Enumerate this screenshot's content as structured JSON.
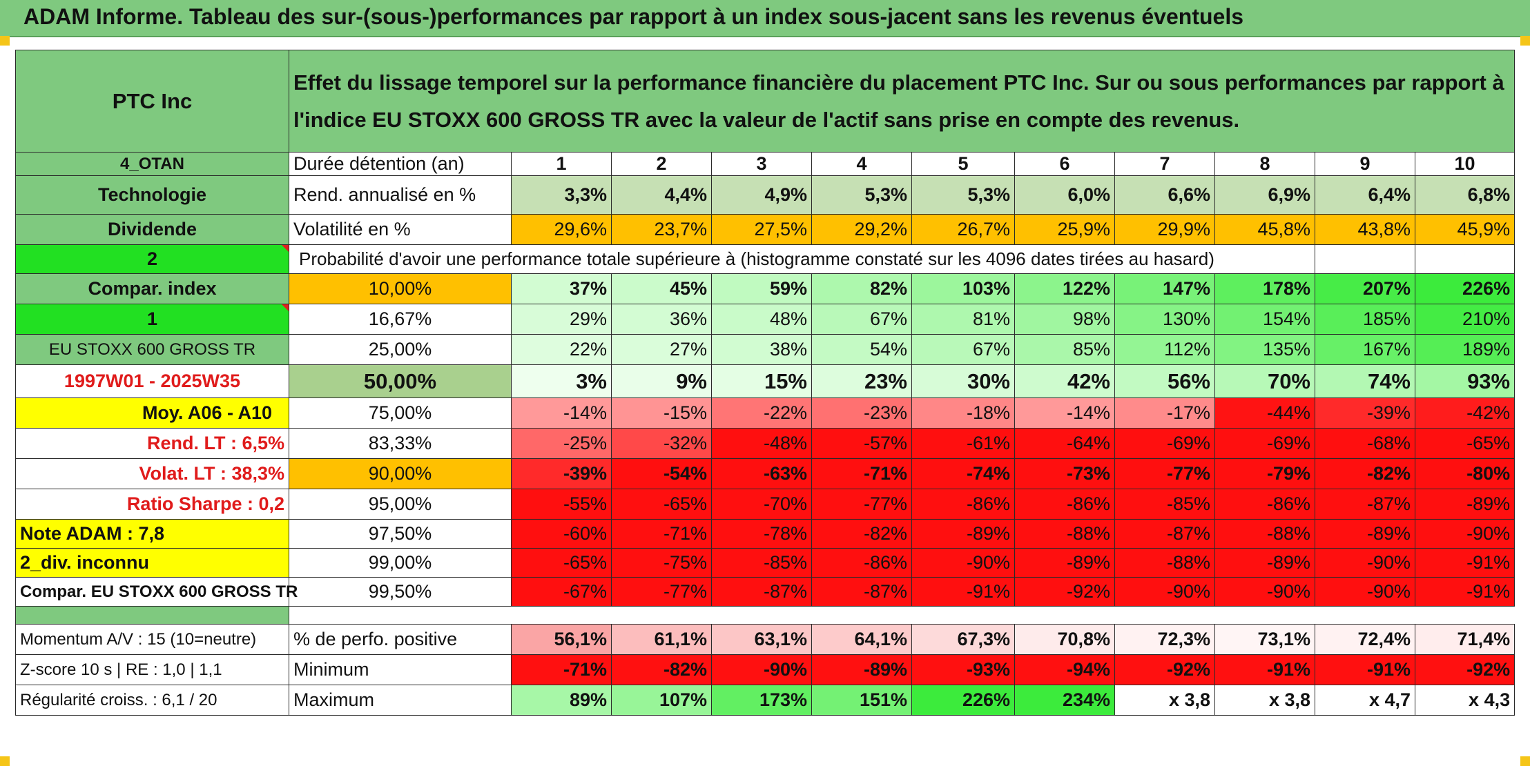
{
  "title": "ADAM Informe. Tableau des sur-(sous-)performances par rapport à un index sous-jacent sans les revenus éventuels",
  "colors": {
    "title_bg": "#7fc97f",
    "header_green": "#7fc97f",
    "orange": "#ffc000",
    "bright_green": "#22e022",
    "yellow": "#ffff00",
    "label_red": "#e01b1b"
  },
  "sidebar": {
    "company": "PTC Inc",
    "code": "4_OTAN",
    "sector": "Technologie",
    "dividend": "Dividende",
    "num_2": "2",
    "compar_index": "Compar. index",
    "num_1": "1",
    "index_name": "EU STOXX 600 GROSS TR",
    "period": "1997W01 - 2025W35",
    "moy": "Moy. A06 - A10",
    "rend_lt": "Rend. LT :   6,5%",
    "volat_lt": "Volat. LT :   38,3%",
    "sharpe": "Ratio Sharpe :   0,2",
    "note": "Note ADAM : 7,8",
    "div_inconnu": "2_div. inconnu",
    "compar_full": "Compar. EU STOXX 600 GROSS TR",
    "momentum": "Momentum A/V : 15 (10=neutre)",
    "zscore": "Z-score 10 s | RE : 1,0 | 1,1",
    "regularite": "Régularité croiss. : 6,1 / 20"
  },
  "header": {
    "description": "Effet du lissage temporel sur la performance financière du placement PTC Inc. Sur ou sous performances par rapport à l'indice EU STOXX 600 GROSS TR avec la valeur de l'actif sans prise en compte des revenus."
  },
  "labels": {
    "duree": "Durée détention (an)",
    "rend": "Rend. annualisé en %",
    "vol": "Volatilité en %",
    "proba": "Probabilité d'avoir une performance totale supérieure à (histogramme constaté sur les 4096 dates tirées au hasard)",
    "perfo_pos": "% de perfo. positive",
    "minimum": "Minimum",
    "maximum": "Maximum"
  },
  "years": [
    "1",
    "2",
    "3",
    "4",
    "5",
    "6",
    "7",
    "8",
    "9",
    "10"
  ],
  "rend": [
    "3,3%",
    "4,4%",
    "4,9%",
    "5,3%",
    "5,3%",
    "6,0%",
    "6,6%",
    "6,9%",
    "6,4%",
    "6,8%"
  ],
  "vol": [
    "29,6%",
    "23,7%",
    "27,5%",
    "29,2%",
    "26,7%",
    "25,9%",
    "29,9%",
    "45,8%",
    "43,8%",
    "45,9%"
  ],
  "prob_rows": [
    {
      "pct": "10,00%",
      "vals": [
        "37%",
        "45%",
        "59%",
        "82%",
        "103%",
        "122%",
        "147%",
        "178%",
        "207%",
        "226%"
      ]
    },
    {
      "pct": "16,67%",
      "vals": [
        "29%",
        "36%",
        "48%",
        "67%",
        "81%",
        "98%",
        "130%",
        "154%",
        "185%",
        "210%"
      ]
    },
    {
      "pct": "25,00%",
      "vals": [
        "22%",
        "27%",
        "38%",
        "54%",
        "67%",
        "85%",
        "112%",
        "135%",
        "167%",
        "189%"
      ]
    },
    {
      "pct": "50,00%",
      "vals": [
        "3%",
        "9%",
        "15%",
        "23%",
        "30%",
        "42%",
        "56%",
        "70%",
        "74%",
        "93%"
      ]
    },
    {
      "pct": "75,00%",
      "vals": [
        "-14%",
        "-15%",
        "-22%",
        "-23%",
        "-18%",
        "-14%",
        "-17%",
        "-44%",
        "-39%",
        "-42%"
      ]
    },
    {
      "pct": "83,33%",
      "vals": [
        "-25%",
        "-32%",
        "-48%",
        "-57%",
        "-61%",
        "-64%",
        "-69%",
        "-69%",
        "-68%",
        "-65%"
      ]
    },
    {
      "pct": "90,00%",
      "vals": [
        "-39%",
        "-54%",
        "-63%",
        "-71%",
        "-74%",
        "-73%",
        "-77%",
        "-79%",
        "-82%",
        "-80%"
      ]
    },
    {
      "pct": "95,00%",
      "vals": [
        "-55%",
        "-65%",
        "-70%",
        "-77%",
        "-86%",
        "-86%",
        "-85%",
        "-86%",
        "-87%",
        "-89%"
      ]
    },
    {
      "pct": "97,50%",
      "vals": [
        "-60%",
        "-71%",
        "-78%",
        "-82%",
        "-89%",
        "-88%",
        "-87%",
        "-88%",
        "-89%",
        "-90%"
      ]
    },
    {
      "pct": "99,00%",
      "vals": [
        "-65%",
        "-75%",
        "-85%",
        "-86%",
        "-90%",
        "-89%",
        "-88%",
        "-89%",
        "-90%",
        "-91%"
      ]
    },
    {
      "pct": "99,50%",
      "vals": [
        "-67%",
        "-77%",
        "-87%",
        "-87%",
        "-91%",
        "-92%",
        "-90%",
        "-90%",
        "-90%",
        "-91%"
      ]
    }
  ],
  "perfo_pos": [
    "56,1%",
    "61,1%",
    "63,1%",
    "64,1%",
    "67,3%",
    "70,8%",
    "72,3%",
    "73,1%",
    "72,4%",
    "71,4%"
  ],
  "minimum": [
    "-71%",
    "-82%",
    "-90%",
    "-89%",
    "-93%",
    "-94%",
    "-92%",
    "-91%",
    "-91%",
    "-92%"
  ],
  "maximum": [
    "89%",
    "107%",
    "173%",
    "151%",
    "226%",
    "234%",
    "x 3,8",
    "x 3,8",
    "x 4,7",
    "x 4,3"
  ]
}
